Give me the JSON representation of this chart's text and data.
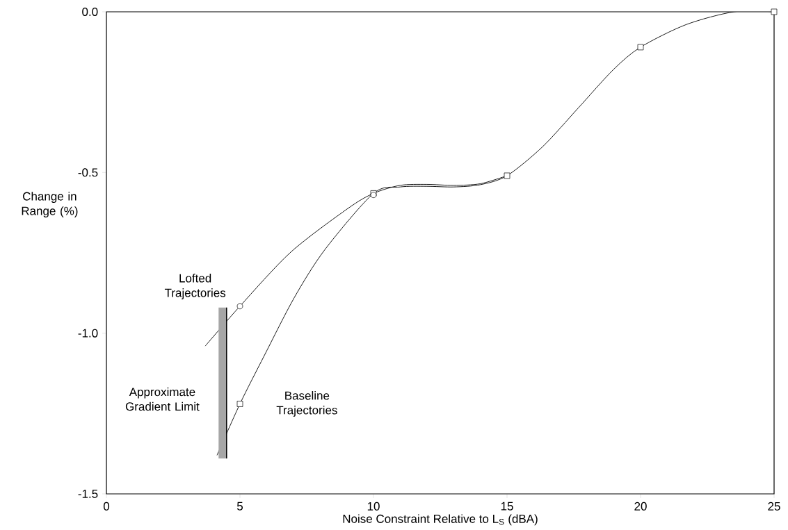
{
  "chart_data": {
    "type": "line",
    "xlabel": "Noise Constraint Relative to L$_{S}$ (dBA)",
    "ylabel": "Change in Range (%)",
    "xlim": [
      0,
      25
    ],
    "ylim": [
      -1.5,
      0
    ],
    "xticks": [
      0,
      5,
      10,
      15,
      20,
      25
    ],
    "yticks": [
      -1.5,
      {
        "value": -1.0,
        "label": "-1.0"
      },
      {
        "value": -0.5,
        "label": "-0.5"
      },
      {
        "value": 0,
        "label": "0.0"
      }
    ],
    "grid": false,
    "series": [
      {
        "name": "Baseline Trajectories",
        "color": "#000000",
        "marker": "none",
        "x": [
          4.14,
          5,
          5.91,
          7.03,
          8.18,
          10,
          11,
          12,
          13,
          14,
          15,
          16.33,
          17.66,
          18.98,
          20,
          21.7,
          23.5,
          25
        ],
        "values": [
          -1.38,
          -1.22,
          -1.07,
          -0.89,
          -0.74,
          -0.565,
          -0.545,
          -0.543,
          -0.545,
          -0.538,
          -0.51,
          -0.42,
          -0.3,
          -0.18,
          -0.11,
          -0.04,
          0,
          0
        ]
      },
      {
        "type": "scatter",
        "color": "#000000",
        "marker": "square",
        "x": [
          5,
          10,
          15,
          20,
          25
        ],
        "values": [
          -1.22,
          -0.565,
          -0.51,
          -0.11,
          0
        ]
      },
      {
        "name": "Lofted Trajectories",
        "color": "#000000",
        "marker": "none",
        "x": [
          3.7,
          5,
          6.9,
          9.04,
          10,
          11,
          12,
          13,
          14,
          15
        ],
        "values": [
          -1.04,
          -0.916,
          -0.748,
          -0.612,
          -0.565,
          -0.54,
          -0.537,
          -0.54,
          -0.535,
          -0.51
        ]
      },
      {
        "type": "scatter",
        "color": "#000000",
        "marker": "circle",
        "x": [
          5,
          10
        ],
        "values": [
          -0.916,
          -0.57
        ]
      },
      {
        "color": "#000000",
        "marker": "none",
        "x": [
          4.5,
          4.5
        ],
        "values": [
          -0.92,
          -1.39
        ]
      }
    ],
    "bands": [
      {
        "axis": "x",
        "from": 4.2,
        "to": 4.5,
        "color": "#a6a6a6"
      }
    ],
    "annotations": [
      "Approximate Gradient Limit"
    ]
  }
}
